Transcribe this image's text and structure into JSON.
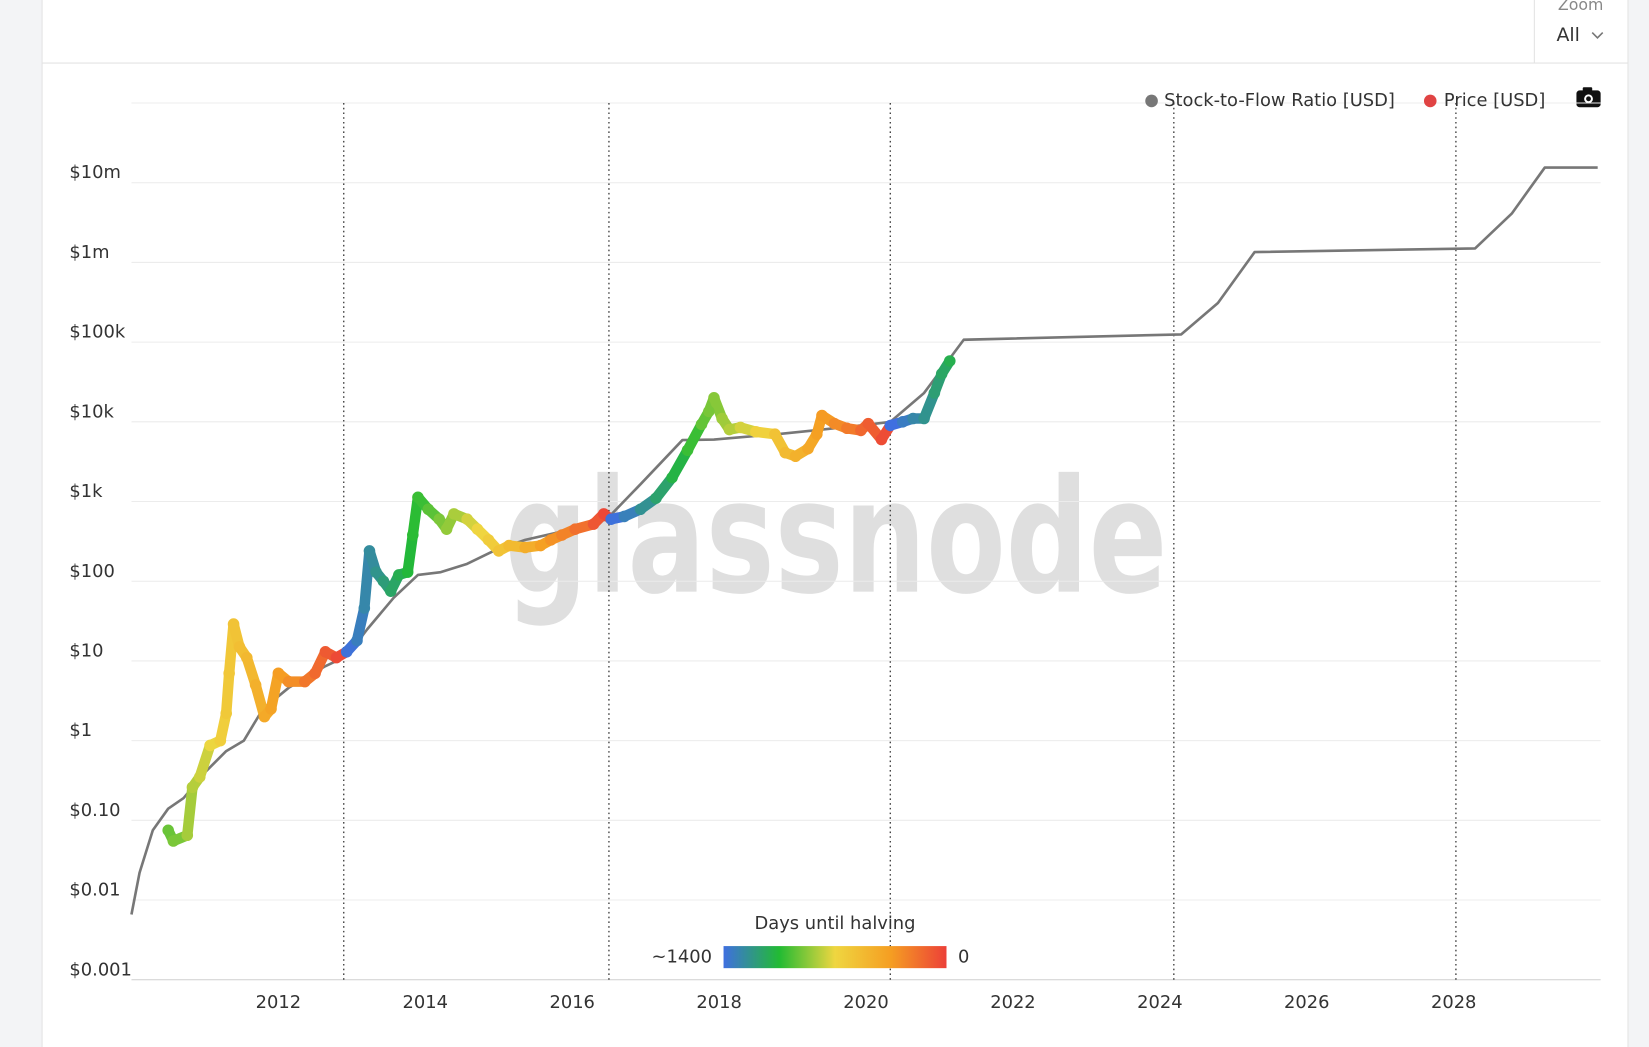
{
  "chart_data": {
    "type": "line",
    "watermark": "glassnode",
    "zoom_label": "Zoom",
    "zoom_value": "All",
    "yscale": "log",
    "grid": true,
    "xlim": [
      2010,
      2030
    ],
    "ylim": [
      0.001,
      100000000
    ],
    "xticks": [
      2012,
      2014,
      2016,
      2018,
      2020,
      2022,
      2024,
      2026,
      2028
    ],
    "yticks": [
      {
        "value": 0.001,
        "label": "$0.001"
      },
      {
        "value": 0.01,
        "label": "$0.01"
      },
      {
        "value": 0.1,
        "label": "$0.10"
      },
      {
        "value": 1,
        "label": "$1"
      },
      {
        "value": 10,
        "label": "$10"
      },
      {
        "value": 100,
        "label": "$100"
      },
      {
        "value": 1000,
        "label": "$1k"
      },
      {
        "value": 10000,
        "label": "$10k"
      },
      {
        "value": 100000,
        "label": "$100k"
      },
      {
        "value": 1000000,
        "label": "$1m"
      },
      {
        "value": 10000000,
        "label": "$10m"
      }
    ],
    "vlines": [
      2012.89,
      2016.5,
      2020.33,
      2024.19,
      2028.03
    ],
    "series": [
      {
        "name": "Stock-to-Flow Ratio [USD]",
        "type": "line",
        "color": "#777777",
        "x": [
          2010.0,
          2010.11,
          2010.29,
          2010.5,
          2010.71,
          2011.0,
          2011.29,
          2011.53,
          2011.79,
          2012.14,
          2012.64,
          2012.93,
          2013.21,
          2013.57,
          2013.9,
          2014.21,
          2014.57,
          2014.93,
          2015.36,
          2016.0,
          2016.47,
          2016.93,
          2017.5,
          2017.93,
          2018.79,
          2019.29,
          2019.93,
          2020.33,
          2020.79,
          2021.33,
          2024.29,
          2024.79,
          2025.29,
          2028.29,
          2028.79,
          2029.24,
          2029.96
        ],
        "values": [
          0.0066,
          0.022,
          0.075,
          0.14,
          0.19,
          0.4,
          0.74,
          1.0,
          2.5,
          4.6,
          8.6,
          11.5,
          25,
          62,
          120,
          130,
          165,
          240,
          330,
          450,
          600,
          1650,
          5900,
          6000,
          7000,
          7800,
          9000,
          10000,
          23000,
          107000,
          125000,
          310000,
          1350000,
          1500000,
          4100000,
          15500000,
          15500000
        ]
      },
      {
        "name": "Price [USD]",
        "type": "scatter",
        "color": "#e04343",
        "x": [
          2010.5,
          2010.57,
          2010.76,
          2010.83,
          2010.93,
          2011.07,
          2011.21,
          2011.29,
          2011.33,
          2011.39,
          2011.47,
          2011.57,
          2011.69,
          2011.81,
          2011.9,
          2012.0,
          2012.14,
          2012.36,
          2012.5,
          2012.64,
          2012.79,
          2012.93,
          2013.07,
          2013.17,
          2013.24,
          2013.33,
          2013.43,
          2013.53,
          2013.64,
          2013.76,
          2013.83,
          2013.9,
          2014.04,
          2014.19,
          2014.29,
          2014.39,
          2014.57,
          2014.71,
          2014.86,
          2015.0,
          2015.14,
          2015.36,
          2015.57,
          2015.71,
          2015.86,
          2016.04,
          2016.29,
          2016.43,
          2016.53,
          2016.71,
          2016.93,
          2017.14,
          2017.36,
          2017.57,
          2017.76,
          2017.86,
          2017.93,
          2018.04,
          2018.14,
          2018.29,
          2018.5,
          2018.76,
          2018.9,
          2019.04,
          2019.21,
          2019.33,
          2019.4,
          2019.57,
          2019.74,
          2019.93,
          2020.03,
          2020.21,
          2020.33,
          2020.5,
          2020.64,
          2020.79,
          2020.93,
          2021.03,
          2021.14
        ],
        "values": [
          0.075,
          0.055,
          0.065,
          0.26,
          0.35,
          0.87,
          1.0,
          2.2,
          7,
          29,
          15,
          11,
          5,
          2,
          2.5,
          7,
          5.5,
          5.5,
          7,
          13,
          11,
          13,
          18,
          46,
          240,
          130,
          100,
          75,
          120,
          130,
          380,
          1130,
          800,
          600,
          450,
          700,
          600,
          450,
          330,
          240,
          280,
          265,
          280,
          330,
          380,
          450,
          520,
          700,
          600,
          650,
          800,
          1100,
          2000,
          4400,
          9300,
          13500,
          20000,
          11000,
          8000,
          8500,
          7500,
          7000,
          4100,
          3700,
          4600,
          7000,
          12000,
          9500,
          8300,
          7800,
          9500,
          6000,
          9000,
          10000,
          11000,
          11000,
          23000,
          40000,
          58000
        ]
      }
    ],
    "colorbar": {
      "title": "Days until halving",
      "min_label": "~1400",
      "max_label": "0",
      "colors": [
        "#3f6fe0",
        "#22bb33",
        "#efd640",
        "#f59e22",
        "#ec4038"
      ]
    }
  }
}
